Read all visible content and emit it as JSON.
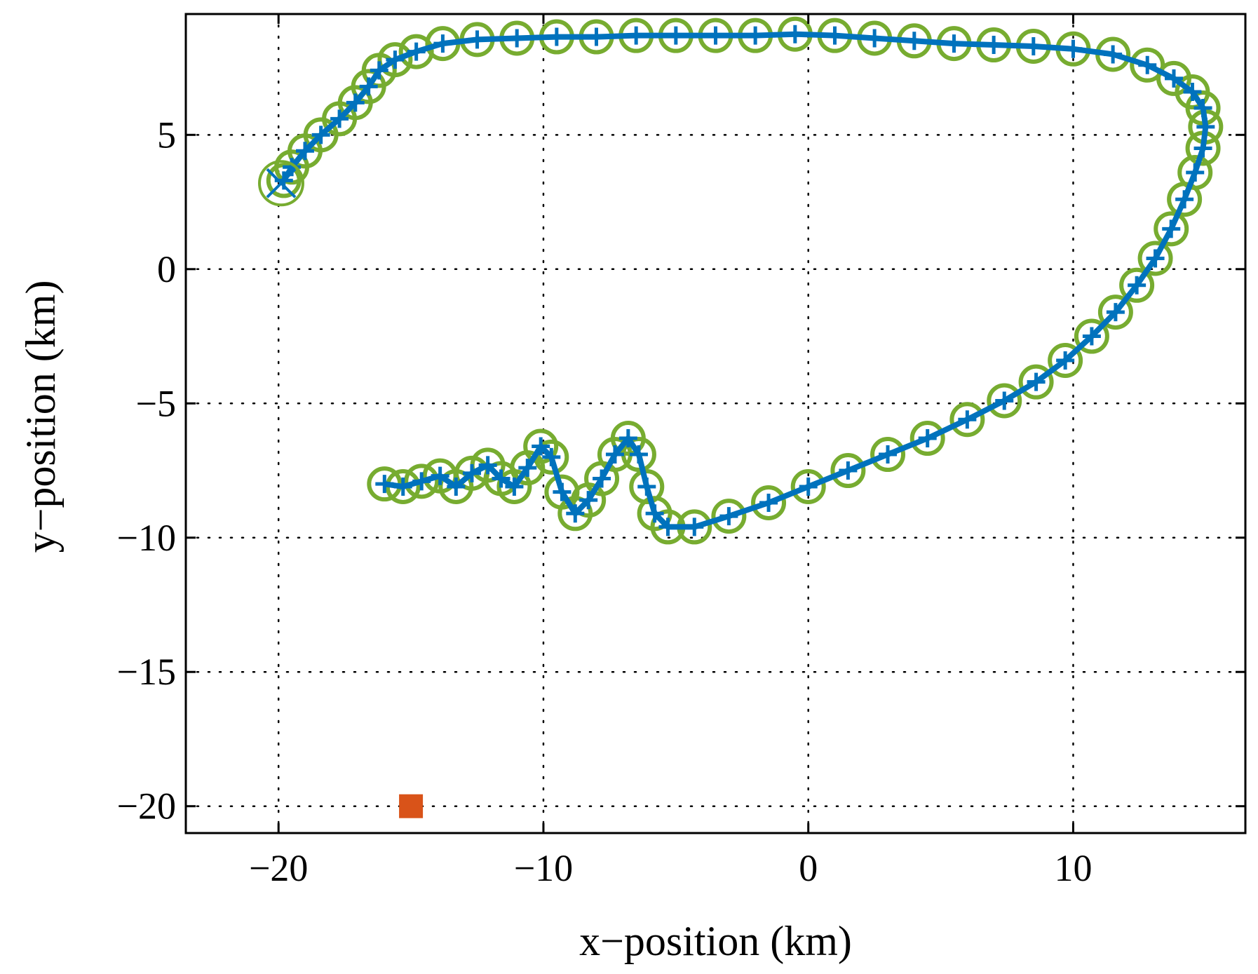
{
  "chart_data": {
    "type": "scatter",
    "title": "",
    "xlabel": "x−position (km)",
    "ylabel": "y−position (km)",
    "xlim": [
      -23.5,
      16.5
    ],
    "ylim": [
      -21,
      9.5
    ],
    "xticks": [
      -20,
      -10,
      0,
      10
    ],
    "xtick_labels": [
      "−20",
      "−10",
      "0",
      "10"
    ],
    "yticks": [
      5,
      0,
      -5,
      -10,
      -15,
      -20
    ],
    "ytick_labels": [
      "5",
      "0",
      "−5",
      "−10",
      "−15",
      "−20"
    ],
    "grid": true,
    "colors": {
      "track": "#0072bd",
      "circles": "#77ac30",
      "square": "#d95319",
      "axes": "#000000",
      "grid": "#000000"
    },
    "series": [
      {
        "name": "path",
        "style": "line+plus markers",
        "points": [
          [
            -19.8,
            3.3
          ],
          [
            -19.5,
            3.8
          ],
          [
            -19.0,
            4.4
          ],
          [
            -18.4,
            5.0
          ],
          [
            -17.7,
            5.6
          ],
          [
            -17.1,
            6.2
          ],
          [
            -16.6,
            6.8
          ],
          [
            -16.2,
            7.4
          ],
          [
            -15.6,
            7.8
          ],
          [
            -14.8,
            8.1
          ],
          [
            -13.8,
            8.4
          ],
          [
            -12.5,
            8.55
          ],
          [
            -11.0,
            8.6
          ],
          [
            -9.5,
            8.65
          ],
          [
            -8.0,
            8.65
          ],
          [
            -6.5,
            8.7
          ],
          [
            -5.0,
            8.7
          ],
          [
            -3.5,
            8.7
          ],
          [
            -2.0,
            8.7
          ],
          [
            -0.5,
            8.75
          ],
          [
            1.0,
            8.7
          ],
          [
            2.5,
            8.6
          ],
          [
            4.0,
            8.5
          ],
          [
            5.5,
            8.4
          ],
          [
            7.0,
            8.35
          ],
          [
            8.5,
            8.3
          ],
          [
            10.0,
            8.2
          ],
          [
            11.5,
            8.0
          ],
          [
            12.8,
            7.6
          ],
          [
            13.8,
            7.1
          ],
          [
            14.5,
            6.6
          ],
          [
            14.9,
            6.0
          ],
          [
            15.0,
            5.3
          ],
          [
            14.9,
            4.5
          ],
          [
            14.6,
            3.6
          ],
          [
            14.2,
            2.6
          ],
          [
            13.7,
            1.5
          ],
          [
            13.1,
            0.4
          ],
          [
            12.4,
            -0.6
          ],
          [
            11.6,
            -1.6
          ],
          [
            10.7,
            -2.5
          ],
          [
            9.7,
            -3.4
          ],
          [
            8.6,
            -4.2
          ],
          [
            7.4,
            -4.9
          ],
          [
            6.0,
            -5.6
          ],
          [
            4.5,
            -6.3
          ],
          [
            3.0,
            -6.9
          ],
          [
            1.5,
            -7.5
          ],
          [
            0.0,
            -8.1
          ],
          [
            -1.5,
            -8.7
          ],
          [
            -3.0,
            -9.2
          ],
          [
            -4.3,
            -9.6
          ],
          [
            -5.3,
            -9.6
          ],
          [
            -5.8,
            -9.1
          ],
          [
            -6.1,
            -8.1
          ],
          [
            -6.4,
            -6.9
          ],
          [
            -6.8,
            -6.3
          ],
          [
            -7.3,
            -6.9
          ],
          [
            -7.8,
            -7.8
          ],
          [
            -8.3,
            -8.6
          ],
          [
            -8.8,
            -9.1
          ],
          [
            -9.3,
            -8.3
          ],
          [
            -9.7,
            -7.0
          ],
          [
            -10.1,
            -6.6
          ],
          [
            -10.6,
            -7.4
          ],
          [
            -11.1,
            -8.1
          ],
          [
            -11.6,
            -7.8
          ],
          [
            -12.1,
            -7.3
          ],
          [
            -12.7,
            -7.6
          ],
          [
            -13.3,
            -8.1
          ],
          [
            -13.9,
            -7.7
          ],
          [
            -14.6,
            -7.9
          ],
          [
            -15.3,
            -8.1
          ],
          [
            -16.0,
            -8.0
          ]
        ]
      },
      {
        "name": "circles",
        "style": "open circles",
        "points_ref": "path"
      },
      {
        "name": "start",
        "style": "x marker with large circle",
        "points": [
          [
            -19.9,
            3.2
          ]
        ]
      },
      {
        "name": "target",
        "style": "filled square",
        "points": [
          [
            -15,
            -20
          ]
        ]
      }
    ]
  }
}
